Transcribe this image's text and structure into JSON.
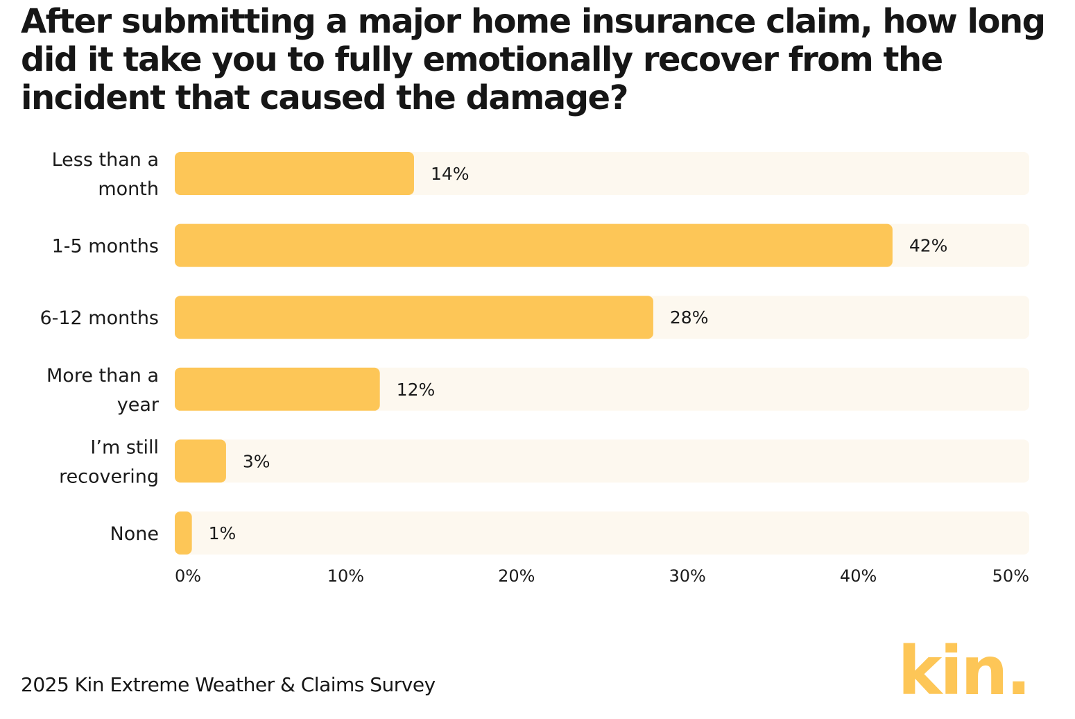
{
  "title": "After submitting a major home insurance claim, how long did it take you to fully emotionally recover from the incident that caused the damage?",
  "footer": "2025 Kin Extreme Weather & Claims Survey",
  "logo_text": "kin.",
  "colors": {
    "bar": "#fdc657",
    "track": "#fdf8ef",
    "text": "#1a1a1a"
  },
  "chart_data": {
    "type": "bar",
    "orientation": "horizontal",
    "categories": [
      [
        "Less than a",
        "month"
      ],
      [
        "1-5 months"
      ],
      [
        "6-12 months"
      ],
      [
        "More than a",
        "year"
      ],
      [
        "I’m still",
        "recovering"
      ],
      [
        "None"
      ]
    ],
    "values": [
      14,
      42,
      28,
      12,
      3,
      1
    ],
    "value_labels": [
      "14%",
      "42%",
      "28%",
      "12%",
      "3%",
      "1%"
    ],
    "xlim": [
      0,
      50
    ],
    "ticks": [
      0,
      10,
      20,
      30,
      40,
      50
    ],
    "tick_labels": [
      "0%",
      "10%",
      "20%",
      "30%",
      "40%",
      "50%"
    ],
    "xlabel": "",
    "ylabel": "",
    "grid": false,
    "legend": "none"
  }
}
